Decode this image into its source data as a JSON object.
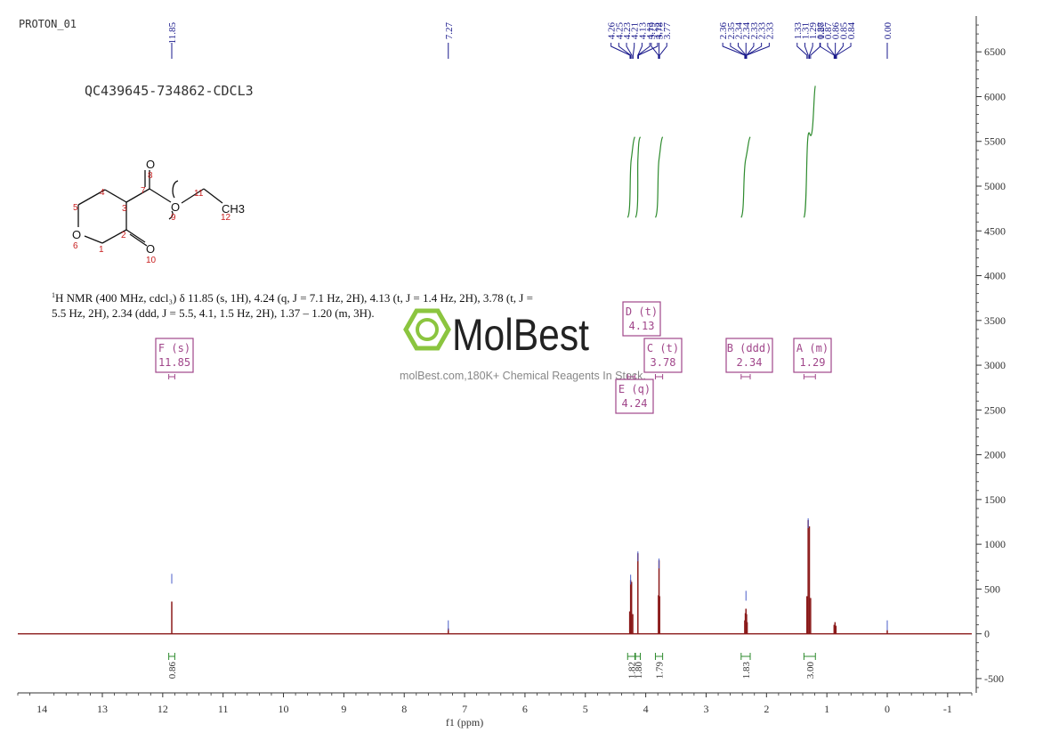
{
  "page": {
    "corner_label": "PROTON_01",
    "sample_title": "QC439645-734862-CDCL3",
    "description_line1_prefix": "1",
    "description_line1": "H NMR (400 MHz, cdcl₃) δ 11.85 (s, 1H), 4.24 (q, J = 7.1 Hz, 2H), 4.13 (t, J = 1.4 Hz, 2H), 3.78 (t, J =",
    "description_line2": "5.5 Hz, 2H), 2.34 (ddd, J = 5.5, 4.1, 1.5 Hz, 2H), 1.37 – 1.20 (m, 3H).",
    "watermark_brand": "MolBest",
    "watermark_tagline": "molBest.com,180K+ Chemical Reagents In Stock."
  },
  "molecule": {
    "atoms": [
      {
        "label": "O",
        "num": "8"
      },
      {
        "label": "7"
      },
      {
        "label": "4"
      },
      {
        "label": "3"
      },
      {
        "label": "5"
      },
      {
        "label": "O",
        "num": "9"
      },
      {
        "label": "11"
      },
      {
        "label": "CH3",
        "num": "12"
      },
      {
        "label": "2"
      },
      {
        "label": "O",
        "num": "6"
      },
      {
        "label": "1"
      },
      {
        "label": "O",
        "num": "10"
      }
    ]
  },
  "chart_data": {
    "type": "line",
    "title": "",
    "xlabel": "f1 (ppm)",
    "ylabel": "",
    "xlim": [
      14.4,
      -1.4
    ],
    "ylim": [
      -660,
      6900
    ],
    "x_ticks": [
      "14",
      "13",
      "12",
      "11",
      "10",
      "9",
      "8",
      "7",
      "6",
      "5",
      "4",
      "3",
      "2",
      "1",
      "0",
      "-1"
    ],
    "y_ticks": [
      "6500",
      "6000",
      "5500",
      "5000",
      "4500",
      "4000",
      "3500",
      "3000",
      "2500",
      "2000",
      "1500",
      "1000",
      "500",
      "0",
      "-500"
    ],
    "peaks_ppm": [
      11.85,
      7.27,
      4.26,
      4.25,
      4.23,
      4.21,
      4.13,
      4.13,
      4.12,
      3.79,
      3.78,
      3.77,
      2.36,
      2.35,
      2.34,
      2.34,
      2.33,
      2.33,
      2.33,
      1.33,
      1.31,
      1.29,
      1.27,
      0.88,
      0.87,
      0.86,
      0.85,
      0.84,
      0.0
    ],
    "peak_labels": [
      "11.85",
      "7.27",
      "4.26",
      "4.25",
      "4.23",
      "4.21",
      "4.13",
      "4.13",
      "4.12",
      "3.79",
      "3.78",
      "3.77",
      "2.36",
      "2.35",
      "2.34",
      "2.34",
      "2.33",
      "2.33",
      "2.33",
      "1.33",
      "1.31",
      "1.29",
      "1.27",
      "0.88",
      "0.87",
      "0.86",
      "0.85",
      "0.84",
      "0.00"
    ],
    "spectrum_lines": [
      {
        "ppm": 11.85,
        "intensity": 360
      },
      {
        "ppm": 7.27,
        "intensity": 60
      },
      {
        "ppm": 4.265,
        "intensity": 250
      },
      {
        "ppm": 4.25,
        "intensity": 600
      },
      {
        "ppm": 4.235,
        "intensity": 580
      },
      {
        "ppm": 4.215,
        "intensity": 220
      },
      {
        "ppm": 4.13,
        "intensity": 900
      },
      {
        "ppm": 3.79,
        "intensity": 430
      },
      {
        "ppm": 3.78,
        "intensity": 820
      },
      {
        "ppm": 3.77,
        "intensity": 420
      },
      {
        "ppm": 2.36,
        "intensity": 150
      },
      {
        "ppm": 2.35,
        "intensity": 230
      },
      {
        "ppm": 2.34,
        "intensity": 280
      },
      {
        "ppm": 2.33,
        "intensity": 220
      },
      {
        "ppm": 2.32,
        "intensity": 130
      },
      {
        "ppm": 1.33,
        "intensity": 420
      },
      {
        "ppm": 1.31,
        "intensity": 1270
      },
      {
        "ppm": 1.29,
        "intensity": 1200
      },
      {
        "ppm": 1.27,
        "intensity": 400
      },
      {
        "ppm": 0.88,
        "intensity": 100
      },
      {
        "ppm": 0.865,
        "intensity": 130
      },
      {
        "ppm": 0.85,
        "intensity": 90
      },
      {
        "ppm": 0.0,
        "intensity": 40
      }
    ],
    "multiplets": [
      {
        "letter": "F",
        "type": "s",
        "shift": "11.85"
      },
      {
        "letter": "D",
        "type": "t",
        "shift": "4.13"
      },
      {
        "letter": "C",
        "type": "t",
        "shift": "3.78"
      },
      {
        "letter": "E",
        "type": "q",
        "shift": "4.24"
      },
      {
        "letter": "B",
        "type": "ddd",
        "shift": "2.34"
      },
      {
        "letter": "A",
        "type": "m",
        "shift": "1.29"
      }
    ],
    "integrals": [
      {
        "from_ppm": 11.9,
        "to_ppm": 11.8,
        "value": "0.86"
      },
      {
        "from_ppm": 4.3,
        "to_ppm": 4.18,
        "value": "1.82"
      },
      {
        "from_ppm": 4.17,
        "to_ppm": 4.09,
        "value": "1.80"
      },
      {
        "from_ppm": 3.84,
        "to_ppm": 3.72,
        "value": "1.79"
      },
      {
        "from_ppm": 2.42,
        "to_ppm": 2.27,
        "value": "1.83"
      },
      {
        "from_ppm": 1.38,
        "to_ppm": 1.19,
        "value": "3.00"
      }
    ],
    "integral_curve_levels": [
      0,
      0.09,
      0.27,
      0.45,
      0.63,
      1.0
    ],
    "colors": {
      "spectrum": "#8b1a1a",
      "peak_label": "#1a1a8c",
      "integral": "#2e8b2e",
      "multiplet_box": "#a0468a",
      "axis": "#333333",
      "watermark_logo": "#8bc53f"
    }
  }
}
